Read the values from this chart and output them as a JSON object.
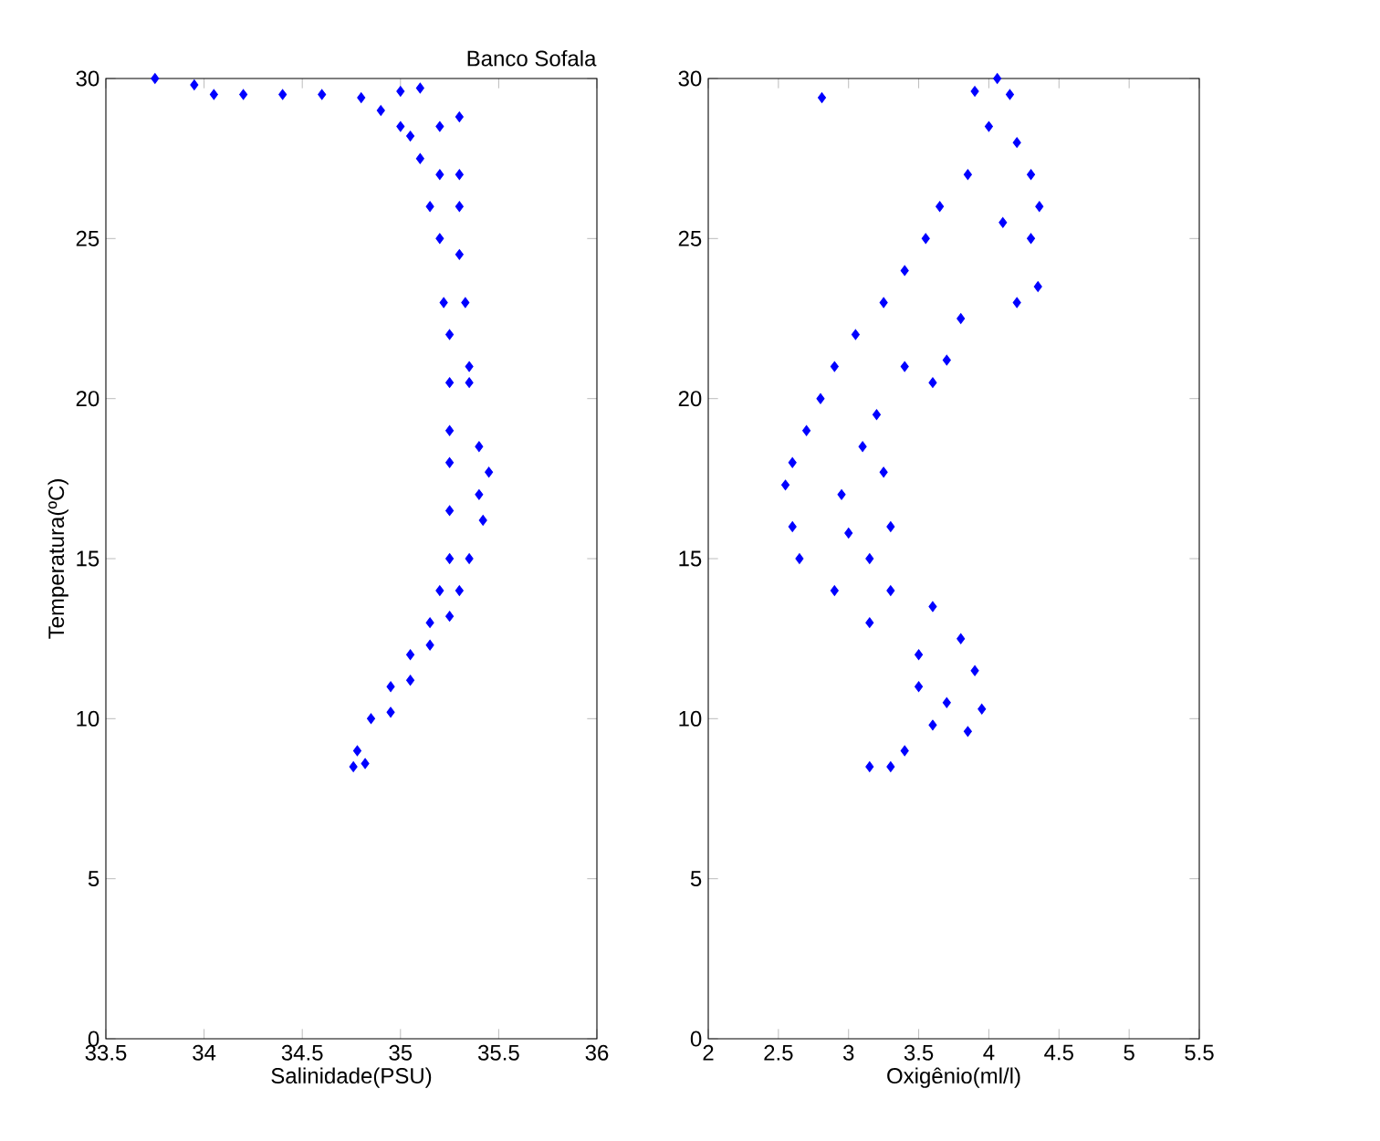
{
  "chart_data": [
    {
      "type": "scatter",
      "title": "Banco Sofala",
      "xlabel": "Salinidade(PSU)",
      "ylabel": "Temperatura(ºC)",
      "xlim": [
        33.5,
        36
      ],
      "ylim": [
        0,
        30
      ],
      "xticks": [
        33.5,
        34,
        34.5,
        35,
        35.5,
        36
      ],
      "yticks": [
        0,
        5,
        10,
        15,
        20,
        25,
        30
      ],
      "marker": "diamond",
      "series": [
        {
          "color": "#0000ff",
          "x": [
            33.75,
            33.95,
            34.05,
            34.2,
            34.4,
            34.6,
            34.8,
            35.0,
            35.1,
            34.9,
            35.0,
            35.05,
            35.2,
            35.3,
            35.1,
            35.2,
            35.3,
            35.15,
            35.3,
            35.2,
            35.3,
            35.22,
            35.33,
            35.25,
            35.35,
            35.25,
            35.35,
            35.25,
            35.4,
            35.25,
            35.45,
            35.4,
            35.25,
            35.42,
            35.25,
            35.35,
            35.2,
            35.3,
            35.15,
            35.25,
            35.05,
            35.15,
            34.95,
            35.05,
            34.85,
            34.95,
            34.78,
            34.82,
            34.76
          ],
          "values": [
            30.0,
            29.8,
            29.5,
            29.5,
            29.5,
            29.5,
            29.4,
            29.6,
            29.7,
            29.0,
            28.5,
            28.2,
            28.5,
            28.8,
            27.5,
            27.0,
            27.0,
            26.0,
            26.0,
            25.0,
            24.5,
            23.0,
            23.0,
            22.0,
            21.0,
            20.5,
            20.5,
            19.0,
            18.5,
            18.0,
            17.7,
            17.0,
            16.5,
            16.2,
            15.0,
            15.0,
            14.0,
            14.0,
            13.0,
            13.2,
            12.0,
            12.3,
            11.0,
            11.2,
            10.0,
            10.2,
            9.0,
            8.6,
            8.5
          ]
        }
      ]
    },
    {
      "type": "scatter",
      "xlabel": "Oxigênio(ml/l)",
      "xlim": [
        2,
        5.5
      ],
      "ylim": [
        0,
        30
      ],
      "xticks": [
        2,
        2.5,
        3,
        3.5,
        4,
        4.5,
        5,
        5.5
      ],
      "yticks": [
        0,
        5,
        10,
        15,
        20,
        25,
        30
      ],
      "marker": "diamond",
      "series": [
        {
          "color": "#0000ff",
          "x": [
            2.81,
            3.9,
            4.06,
            4.15,
            4.0,
            4.2,
            3.85,
            4.3,
            3.65,
            4.36,
            4.1,
            3.55,
            4.3,
            3.4,
            4.35,
            4.2,
            3.25,
            3.8,
            3.05,
            3.7,
            3.4,
            2.9,
            3.6,
            2.8,
            3.2,
            2.7,
            3.1,
            2.6,
            3.25,
            2.55,
            2.95,
            2.6,
            3.3,
            3.0,
            2.65,
            3.15,
            3.3,
            2.9,
            3.6,
            3.15,
            3.8,
            3.5,
            3.5,
            3.9,
            3.7,
            3.95,
            3.6,
            3.85,
            3.4,
            3.15,
            3.3
          ],
          "values": [
            29.4,
            29.6,
            30,
            29.5,
            28.5,
            28.0,
            27.0,
            27.0,
            26.0,
            26.0,
            25.5,
            25.0,
            25.0,
            24.0,
            23.5,
            23.0,
            23.0,
            22.5,
            22.0,
            21.2,
            21.0,
            21.0,
            20.5,
            20.0,
            19.5,
            19.0,
            18.5,
            18.0,
            17.7,
            17.3,
            17.0,
            16.0,
            16.0,
            15.8,
            15.0,
            15.0,
            14.0,
            14.0,
            13.5,
            13.0,
            12.5,
            12.0,
            11.0,
            11.5,
            10.5,
            10.3,
            9.8,
            9.6,
            9.0,
            8.5,
            8.5
          ]
        }
      ]
    }
  ]
}
